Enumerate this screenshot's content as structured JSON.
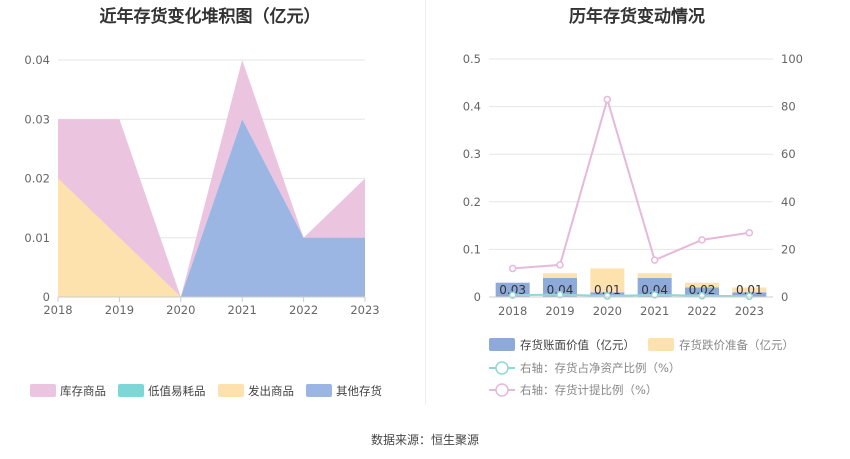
{
  "chart_data": [
    {
      "type": "area",
      "stacked": true,
      "title": "近年存货变化堆积图（亿元）",
      "categories": [
        "2018",
        "2019",
        "2020",
        "2021",
        "2022",
        "2023"
      ],
      "ylim": [
        0,
        0.04
      ],
      "yticks": [
        "0",
        "0.01",
        "0.02",
        "0.03",
        "0.04"
      ],
      "grid": true,
      "legend_position": "bottom",
      "series": [
        {
          "name": "库存商品",
          "color": "#ebc4e0",
          "values": [
            0.01,
            0.02,
            0,
            0.01,
            0,
            0.01
          ]
        },
        {
          "name": "低值易耗品",
          "color": "#7fd6d6",
          "values": [
            0,
            0,
            0,
            0,
            0,
            0
          ]
        },
        {
          "name": "发出商品",
          "color": "#fde2ad",
          "values": [
            0.02,
            0.01,
            0,
            0,
            0,
            0
          ]
        },
        {
          "name": "其他存货",
          "color": "#9bb6e3",
          "values": [
            0,
            0,
            0,
            0.03,
            0.01,
            0.01
          ]
        }
      ]
    },
    {
      "type": "bar",
      "title": "历年存货变动情况",
      "categories": [
        "2018",
        "2019",
        "2020",
        "2021",
        "2022",
        "2023"
      ],
      "ylim": [
        0,
        0.5
      ],
      "yticks": [
        "0",
        "0.1",
        "0.2",
        "0.3",
        "0.4",
        "0.5"
      ],
      "y2lim": [
        0,
        100
      ],
      "y2ticks": [
        "0",
        "20",
        "40",
        "60",
        "80",
        "100"
      ],
      "legend_position": "bottom",
      "series": [
        {
          "name": "存货账面价值（亿元）",
          "type": "bar",
          "color": "#8eaadb",
          "values": [
            0.03,
            0.04,
            0.01,
            0.04,
            0.02,
            0.01
          ],
          "labels": [
            "0.03",
            "0.04",
            "0.01",
            "0.04",
            "0.02",
            "0.01"
          ]
        },
        {
          "name": "存货跌价准备（亿元）",
          "type": "bar",
          "color": "#fde2ad",
          "values": [
            0,
            0.01,
            0.05,
            0.01,
            0.01,
            0.01
          ]
        },
        {
          "name": "右轴：存货占净资产比例（%）",
          "type": "line",
          "axis": "right",
          "color": "#8fd8d8",
          "values": [
            0.8,
            1.0,
            0.4,
            0.9,
            0.5,
            0.3
          ]
        },
        {
          "name": "右轴：存货计提比例（%）",
          "type": "line",
          "axis": "right",
          "color": "#e6b8dc",
          "values": [
            12,
            13.5,
            83,
            15.5,
            24,
            27
          ]
        }
      ]
    }
  ],
  "footer": {
    "source": "数据来源：恒生聚源"
  }
}
